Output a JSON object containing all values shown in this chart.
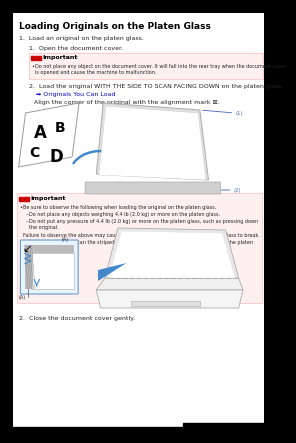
{
  "page_bg": "#ffffff",
  "title": "Loading Originals on the Platen Glass",
  "title_fontsize": 6.5,
  "body_fontsize": 4.5,
  "small_fontsize": 3.8,
  "important_color": "#cc0000",
  "important_bg": "#fff0f0",
  "important_border": "#ffbbbb",
  "link_color": "#0000cc",
  "text_color": "#222222",
  "gray_text": "#444444",
  "step1": "1.  Load an original on the platen glass.",
  "step1a": "1.  Open the document cover.",
  "important_label": "Important",
  "imp1_note": "Do not place any object on the document cover. It will fall into the rear tray when the document cover is opened and cause the machine to malfunction.",
  "step2": "2.  Load the original WITH THE SIDE TO SCAN FACING DOWN on the platen glass.",
  "link_text": "Originals You Can Load",
  "align_text": "Align the corner of the original with the alignment mark",
  "imp2_line1": "Be sure to observe the following when loading the original on the platen glass.",
  "imp2_line2": "Do not place any objects weighing 4.4 lb (2.0 kg) or more on the platen glass.",
  "imp2_line3": "Do not put any pressure of 4.4 lb (2.0 kg) or more on the platen glass, such as pressing down the original.",
  "imp2_line4": "Failure to observe the above may cause the scanner to malfunction or the platen glass to break.",
  "imp2_line5": "The machine cannot scan the striped area (A) (0.04 inch (1 mm) from the edges of the platen glass).",
  "step2_final": "2.  Close the document cover gently.",
  "label1": "(1)",
  "label2": "(2)",
  "label_A": "(A)"
}
